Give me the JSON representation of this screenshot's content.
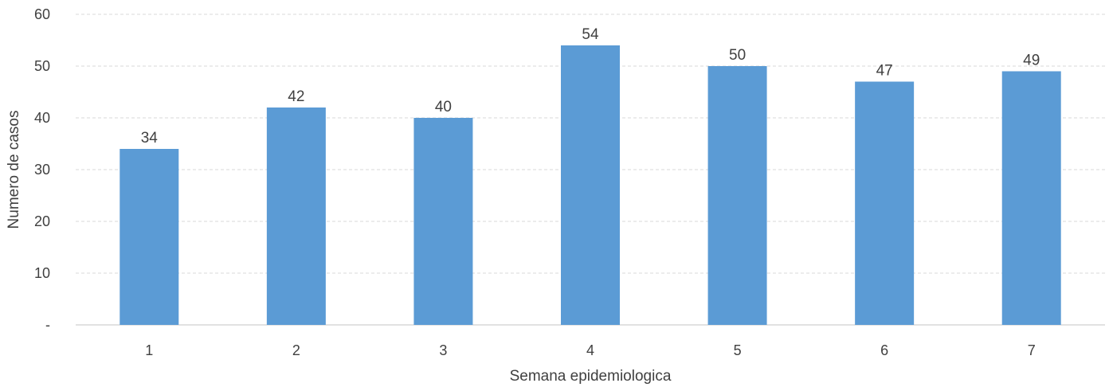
{
  "chart_data": {
    "type": "bar",
    "categories": [
      "1",
      "2",
      "3",
      "4",
      "5",
      "6",
      "7"
    ],
    "values": [
      34,
      42,
      40,
      54,
      50,
      47,
      49
    ],
    "data_labels": [
      "34",
      "42",
      "40",
      "54",
      "50",
      "47",
      "49"
    ],
    "title": "",
    "xlabel": "Semana epidemiologica",
    "ylabel": "Numero de casos",
    "ylim": [
      0,
      60
    ],
    "yticks": [
      0,
      10,
      20,
      30,
      40,
      50,
      60
    ],
    "ytick_labels": [
      "-",
      "10",
      "20",
      "30",
      "40",
      "50",
      "60"
    ],
    "grid": true,
    "legend": "none",
    "colors": {
      "bar": "#5b9bd5",
      "grid": "#d9d9d9",
      "axis": "#d9d9d9",
      "text": "#404040"
    }
  }
}
